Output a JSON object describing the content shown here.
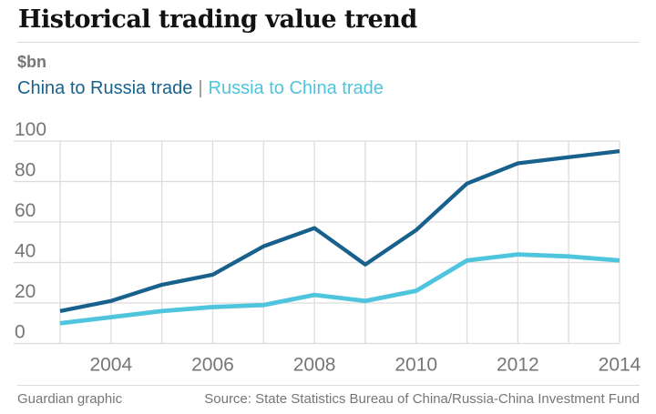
{
  "header": {
    "title": "Historical trading value trend"
  },
  "chart": {
    "units_label": "$bn",
    "legend_separator": "|"
  },
  "footer": {
    "credit": "Guardian graphic",
    "source": "Source: State Statistics Bureau of China/Russia-China Investment Fund"
  },
  "colors": {
    "series1": "#17618c",
    "series2": "#4fc4dd",
    "grid": "#dcdcdc",
    "text_gray": "#767676",
    "title": "#121212",
    "rule": "#dcdcdc"
  },
  "chart_data": {
    "type": "line",
    "title": "Historical trading value trend",
    "ylabel": "$bn",
    "x": [
      2003,
      2004,
      2005,
      2006,
      2007,
      2008,
      2009,
      2010,
      2011,
      2012,
      2013,
      2014
    ],
    "series": [
      {
        "name": "China to Russia trade",
        "color": "#17618c",
        "values": [
          16,
          21,
          29,
          34,
          48,
          57,
          39,
          56,
          79,
          89,
          92,
          95
        ]
      },
      {
        "name": "Russia to China trade",
        "color": "#4fc4dd",
        "values": [
          10,
          13,
          16,
          18,
          19,
          24,
          21,
          26,
          41,
          44,
          43,
          41
        ]
      }
    ],
    "ylim": [
      0,
      100
    ],
    "yticks": [
      0,
      20,
      40,
      60,
      80,
      100
    ],
    "xtick_labels": [
      2004,
      2006,
      2008,
      2010,
      2012,
      2014
    ],
    "grid": true,
    "legend_position": "top"
  }
}
